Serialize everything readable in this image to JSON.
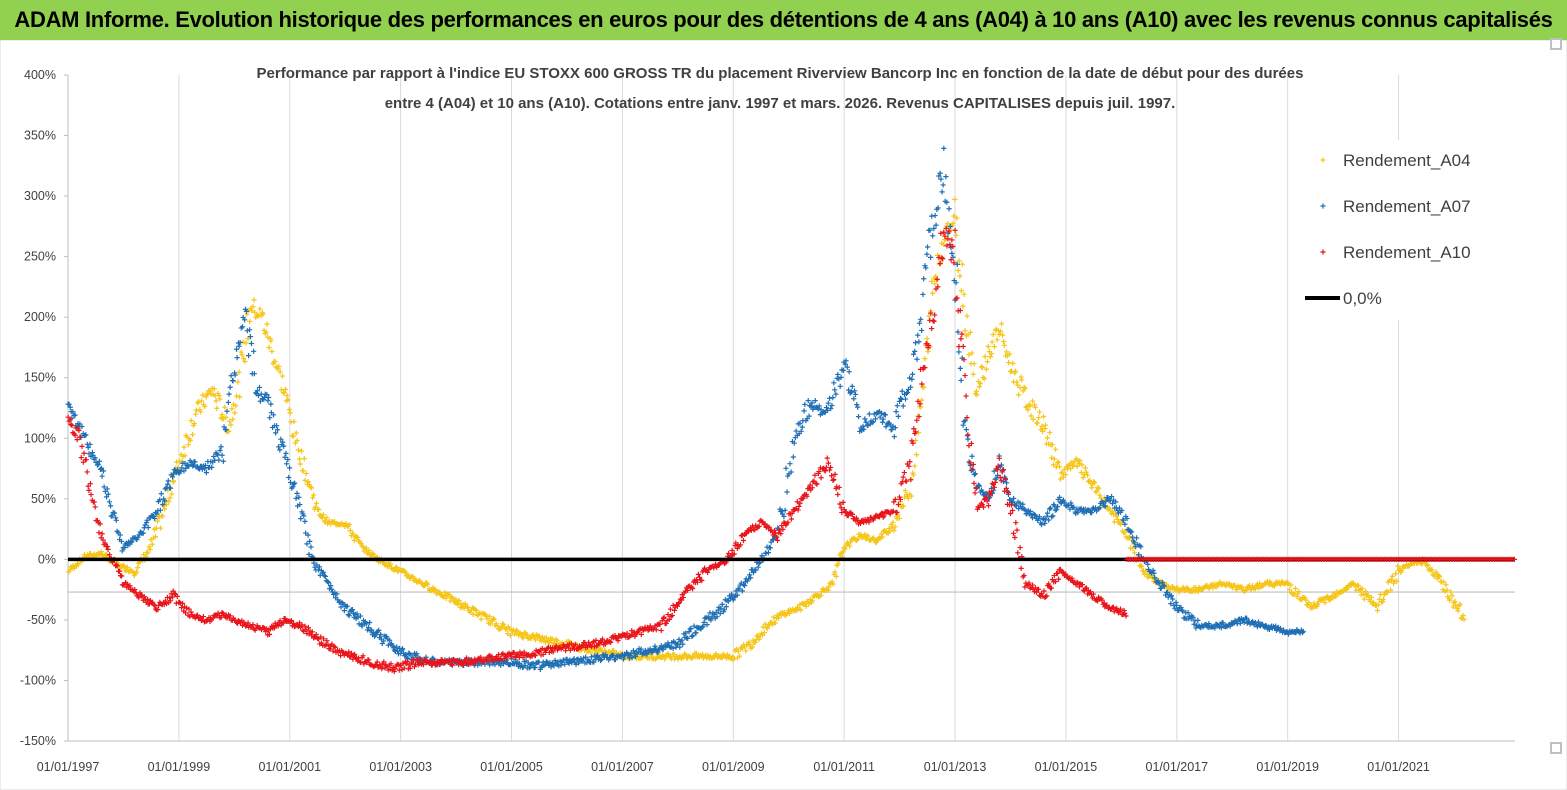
{
  "banner": {
    "title": "ADAM Informe. Evolution historique des performances en euros pour des détentions de 4 ans (A04) à 10 ans (A10) avec les revenus connus capitalisés",
    "color": "#92d050"
  },
  "chart_data": {
    "type": "scatter",
    "title_line1": "Performance par rapport à l'indice EU STOXX 600 GROSS TR  du placement Riverview Bancorp Inc en fonction de la date de début pour des durées",
    "title_line2": "entre 4 (A04) et 10 ans (A10). Cotations entre janv. 1997 et mars. 2026. Revenus CAPITALISES depuis juil. 1997.",
    "x_axis": {
      "type": "date",
      "range": [
        1997.0,
        2023.1
      ],
      "ticks": [
        1997,
        1999,
        2001,
        2003,
        2005,
        2007,
        2009,
        2011,
        2013,
        2015,
        2017,
        2019,
        2021
      ],
      "tick_labels": [
        "01/01/1997",
        "01/01/1999",
        "01/01/2001",
        "01/01/2003",
        "01/01/2005",
        "01/01/2007",
        "01/01/2009",
        "01/01/2011",
        "01/01/2013",
        "01/01/2015",
        "01/01/2017",
        "01/01/2019",
        "01/01/2021"
      ]
    },
    "y_axis": {
      "range": [
        -150,
        400
      ],
      "ticks": [
        -150,
        -100,
        -50,
        0,
        50,
        100,
        150,
        200,
        250,
        300,
        350,
        400
      ],
      "tick_labels": [
        "-150%",
        "-100%",
        "-50%",
        "0%",
        "50%",
        "100%",
        "150%",
        "200%",
        "250%",
        "300%",
        "350%",
        "400%"
      ]
    },
    "legend": {
      "placement": "top-right",
      "entries": [
        {
          "label": "Rendement_A04",
          "color": "#f5c518",
          "marker": "+"
        },
        {
          "label": "Rendement_A07",
          "color": "#1f6fb5",
          "marker": "+"
        },
        {
          "label": "Rendement_A10",
          "color": "#e8151b",
          "marker": "+"
        },
        {
          "label": "0,0%",
          "color": "#000000",
          "marker": "line"
        }
      ]
    },
    "series": [
      {
        "name": "Rendement_A04",
        "color": "#f5c518",
        "x": [
          1997.0,
          1997.3,
          1997.6,
          1997.9,
          1998.2,
          1998.5,
          1998.8,
          1999.0,
          1999.3,
          1999.6,
          1999.9,
          2000.1,
          2000.3,
          2000.5,
          2000.7,
          2000.9,
          2001.1,
          2001.3,
          2001.5,
          2001.7,
          2002.0,
          2002.3,
          2002.6,
          2003.0,
          2003.4,
          2003.8,
          2004.2,
          2004.6,
          2005.0,
          2005.5,
          2006.0,
          2006.5,
          2007.0,
          2007.5,
          2008.0,
          2008.5,
          2009.0,
          2009.3,
          2009.6,
          2009.9,
          2010.2,
          2010.5,
          2010.8,
          2011.0,
          2011.3,
          2011.6,
          2011.9,
          2012.2,
          2012.4,
          2012.6,
          2012.8,
          2013.0,
          2013.2,
          2013.4,
          2013.6,
          2013.8,
          2014.0,
          2014.3,
          2014.6,
          2014.9,
          2015.2,
          2015.5,
          2015.8,
          2016.1,
          2016.4,
          2016.7,
          2017.0,
          2017.4,
          2017.8,
          2018.2,
          2018.6,
          2019.0,
          2019.4,
          2019.8,
          2020.2,
          2020.6,
          2021.0,
          2021.4,
          2021.8,
          2022.2
        ],
        "y": [
          -10,
          2,
          5,
          -5,
          -10,
          10,
          50,
          80,
          120,
          140,
          110,
          150,
          210,
          200,
          170,
          140,
          100,
          70,
          40,
          30,
          30,
          10,
          0,
          -10,
          -20,
          -30,
          -40,
          -50,
          -60,
          -65,
          -70,
          -75,
          -80,
          -80,
          -80,
          -80,
          -80,
          -70,
          -55,
          -45,
          -40,
          -30,
          -20,
          10,
          20,
          15,
          30,
          60,
          130,
          220,
          270,
          280,
          200,
          140,
          170,
          190,
          160,
          130,
          110,
          70,
          80,
          60,
          40,
          20,
          -10,
          -20,
          -25,
          -25,
          -20,
          -25,
          -20,
          -20,
          -40,
          -30,
          -20,
          -40,
          -10,
          0,
          -20,
          -50
        ]
      },
      {
        "name": "Rendement_A07",
        "color": "#1f6fb5",
        "x": [
          1997.0,
          1997.2,
          1997.4,
          1997.6,
          1997.8,
          1998.0,
          1998.3,
          1998.6,
          1998.9,
          1999.2,
          1999.5,
          1999.8,
          2000.0,
          2000.2,
          2000.4,
          2000.6,
          2000.8,
          2001.0,
          2001.2,
          2001.4,
          2001.7,
          2002.0,
          2002.4,
          2002.8,
          2003.2,
          2003.6,
          2004.0,
          2004.5,
          2005.0,
          2005.5,
          2006.0,
          2006.5,
          2007.0,
          2007.5,
          2008.0,
          2008.4,
          2008.8,
          2009.2,
          2009.5,
          2009.8,
          2010.1,
          2010.4,
          2010.7,
          2011.0,
          2011.3,
          2011.6,
          2011.9,
          2012.2,
          2012.4,
          2012.6,
          2012.8,
          2013.0,
          2013.2,
          2013.4,
          2013.6,
          2013.8,
          2014.0,
          2014.3,
          2014.6,
          2014.9,
          2015.2,
          2015.5,
          2015.8,
          2016.1,
          2016.4,
          2016.7,
          2017.0,
          2017.4,
          2017.8,
          2018.2,
          2018.6,
          2019.0,
          2019.3
        ],
        "y": [
          130,
          110,
          90,
          75,
          40,
          10,
          20,
          40,
          70,
          80,
          75,
          90,
          160,
          200,
          140,
          130,
          100,
          70,
          40,
          0,
          -20,
          -40,
          -55,
          -70,
          -80,
          -85,
          -85,
          -85,
          -85,
          -88,
          -85,
          -82,
          -80,
          -75,
          -70,
          -55,
          -40,
          -20,
          0,
          20,
          100,
          130,
          120,
          160,
          110,
          120,
          110,
          150,
          200,
          280,
          320,
          240,
          100,
          60,
          50,
          80,
          50,
          40,
          30,
          50,
          40,
          40,
          50,
          30,
          0,
          -20,
          -40,
          -55,
          -55,
          -50,
          -55,
          -60,
          -60
        ]
      },
      {
        "name": "Rendement_A10",
        "color": "#e8151b",
        "x": [
          1997.0,
          1997.2,
          1997.4,
          1997.6,
          1997.8,
          1998.0,
          1998.3,
          1998.6,
          1998.9,
          1999.2,
          1999.5,
          1999.8,
          2000.0,
          2000.3,
          2000.6,
          2000.9,
          2001.2,
          2001.5,
          2001.8,
          2002.1,
          2002.5,
          2002.9,
          2003.3,
          2003.7,
          2004.1,
          2004.5,
          2004.9,
          2005.3,
          2005.7,
          2006.1,
          2006.5,
          2006.9,
          2007.3,
          2007.7,
          2008.1,
          2008.5,
          2008.9,
          2009.2,
          2009.5,
          2009.8,
          2010.1,
          2010.4,
          2010.7,
          2011.0,
          2011.3,
          2011.6,
          2011.9,
          2012.2,
          2012.4,
          2012.6,
          2012.8,
          2013.0,
          2013.2,
          2013.4,
          2013.6,
          2013.8,
          2014.0,
          2014.3,
          2014.6,
          2014.9,
          2015.2,
          2015.5,
          2015.8,
          2016.1
        ],
        "y": [
          120,
          100,
          60,
          20,
          0,
          -20,
          -30,
          -40,
          -30,
          -45,
          -50,
          -45,
          -50,
          -55,
          -60,
          -50,
          -55,
          -65,
          -75,
          -80,
          -85,
          -90,
          -85,
          -85,
          -85,
          -82,
          -80,
          -78,
          -75,
          -72,
          -70,
          -65,
          -60,
          -55,
          -30,
          -10,
          0,
          20,
          30,
          20,
          40,
          60,
          80,
          40,
          30,
          35,
          40,
          80,
          150,
          200,
          270,
          250,
          120,
          40,
          50,
          80,
          40,
          -20,
          -30,
          -10,
          -20,
          -30,
          -40,
          -45
        ]
      },
      {
        "name": "0,0%",
        "color": "#000000",
        "y": 0
      }
    ],
    "extra_lines": [
      {
        "name": "A10-zero-segment",
        "color": "#e8151b",
        "x": [
          2016.1,
          2023.1
        ],
        "y": 0
      },
      {
        "name": "grey-reference-line",
        "color": "#bfbfbf",
        "y": -27
      }
    ]
  }
}
